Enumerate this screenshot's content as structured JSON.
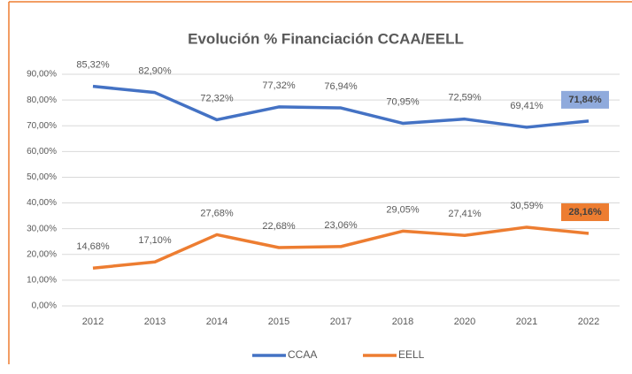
{
  "chart_data": {
    "type": "line",
    "title": "Evolución % Financiación CCAA/EELL",
    "categories": [
      "2012",
      "2013",
      "2014",
      "2015",
      "2017",
      "2018",
      "2020",
      "2021",
      "2022"
    ],
    "series": [
      {
        "name": "CCAA",
        "color": "#4472c4",
        "values": [
          85.32,
          82.9,
          72.32,
          77.32,
          76.94,
          70.95,
          72.59,
          69.41,
          71.84
        ],
        "value_labels": [
          "85,32%",
          "82,90%",
          "72,32%",
          "77,32%",
          "76,94%",
          "70,95%",
          "72,59%",
          "69,41%",
          "71,84%"
        ]
      },
      {
        "name": "EELL",
        "color": "#ed7d31",
        "values": [
          14.68,
          17.1,
          27.68,
          22.68,
          23.06,
          29.05,
          27.41,
          30.59,
          28.16
        ],
        "value_labels": [
          "14,68%",
          "17,10%",
          "27,68%",
          "22,68%",
          "23,06%",
          "29,05%",
          "27,41%",
          "30,59%",
          "28,16%"
        ]
      }
    ],
    "ylim": [
      0,
      90
    ],
    "yticks": [
      {
        "value": 0,
        "label": "0,00%"
      },
      {
        "value": 10,
        "label": "10,00%"
      },
      {
        "value": 20,
        "label": "20,00%"
      },
      {
        "value": 30,
        "label": "30,00%"
      },
      {
        "value": 40,
        "label": "40,00%"
      },
      {
        "value": 50,
        "label": "50,00%"
      },
      {
        "value": 60,
        "label": "60,00%"
      },
      {
        "value": 70,
        "label": "70,00%"
      },
      {
        "value": 80,
        "label": "80,00%"
      },
      {
        "value": 90,
        "label": "90,00%"
      }
    ],
    "grid": true,
    "legend": "bottom"
  }
}
